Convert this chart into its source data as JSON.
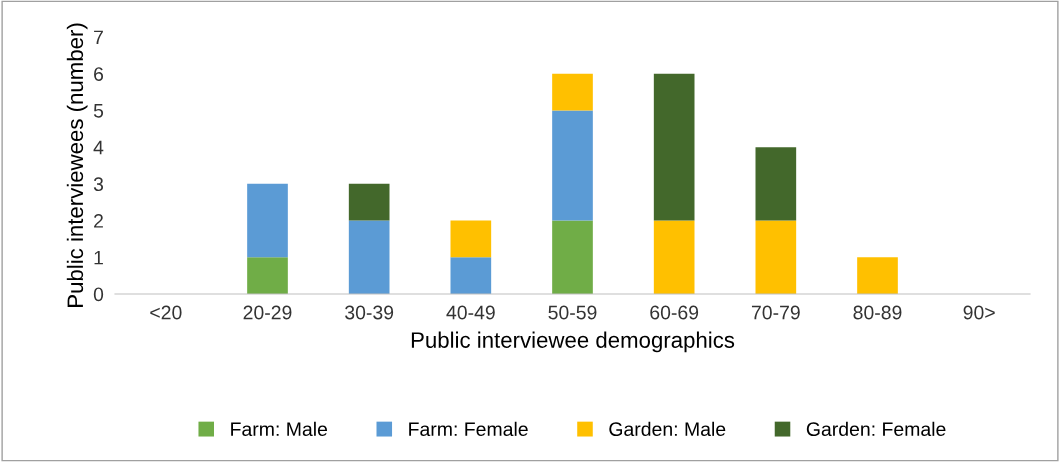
{
  "chart_data": {
    "type": "bar",
    "stacked": true,
    "xlabel": "Public interviewee demographics",
    "ylabel": "Public interviewees (number)",
    "categories": [
      "<20",
      "20-29",
      "30-39",
      "40-49",
      "50-59",
      "60-69",
      "70-79",
      "80-89",
      "90>"
    ],
    "series": [
      {
        "name": "Farm: Male",
        "color": "#70ad47",
        "values": [
          0,
          1,
          0,
          0,
          2,
          0,
          0,
          0,
          0
        ]
      },
      {
        "name": "Farm: Female",
        "color": "#5b9bd5",
        "values": [
          0,
          2,
          2,
          1,
          3,
          0,
          0,
          0,
          0
        ]
      },
      {
        "name": "Garden: Male",
        "color": "#ffc000",
        "values": [
          0,
          0,
          0,
          1,
          1,
          2,
          2,
          1,
          0
        ]
      },
      {
        "name": "Garden: Female",
        "color": "#43682b",
        "values": [
          0,
          0,
          1,
          0,
          0,
          4,
          2,
          0,
          0
        ]
      }
    ],
    "ylim": [
      0,
      7
    ],
    "yticks": [
      0,
      1,
      2,
      3,
      4,
      5,
      6,
      7
    ],
    "grid": false,
    "legend": "bottom"
  }
}
